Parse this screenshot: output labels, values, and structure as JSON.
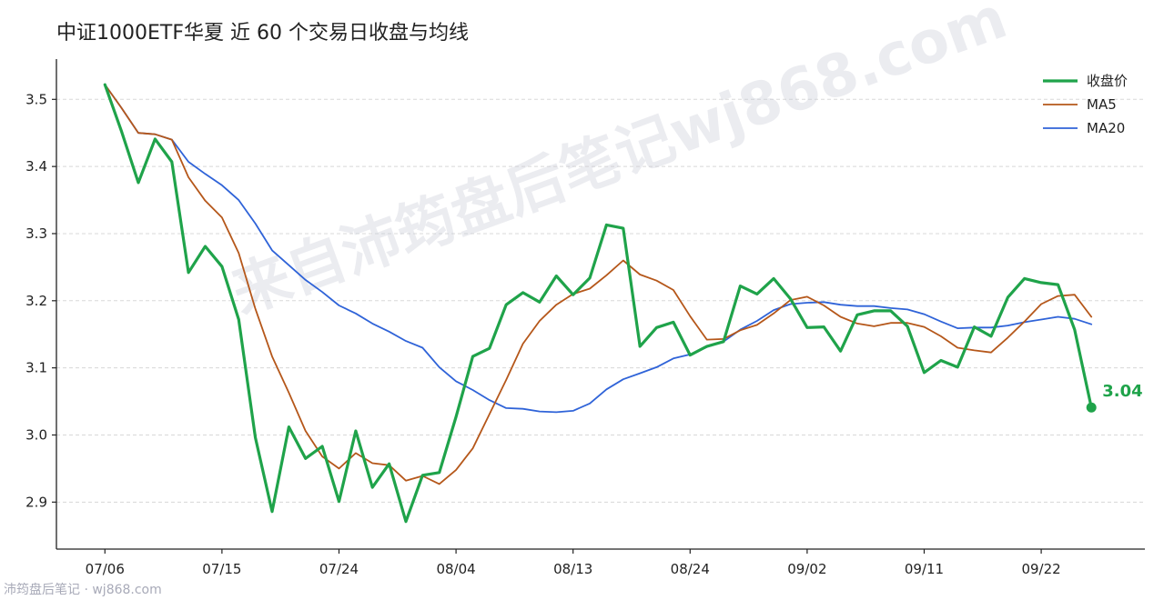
{
  "title": "中证1000ETF华夏 近 60 个交易日收盘与均线",
  "watermark": "来自沛筠盘后笔记wj868.com",
  "footer": "沛筠盘后笔记 · wj868.com",
  "chart_data": {
    "type": "line",
    "title": "中证1000ETF华夏 近 60 个交易日收盘与均线",
    "x_tick_labels": [
      "07/06",
      "07/15",
      "07/24",
      "08/04",
      "08/13",
      "08/24",
      "09/02",
      "09/11",
      "09/22"
    ],
    "x_tick_indices": [
      0,
      7,
      14,
      21,
      28,
      35,
      42,
      49,
      56
    ],
    "y_ticks": [
      2.9,
      3.0,
      3.1,
      3.2,
      3.3,
      3.4,
      3.5
    ],
    "y_tick_labels": [
      "2.9",
      "3.0",
      "3.1",
      "3.2",
      "3.3",
      "3.4",
      "3.5"
    ],
    "ylim": [
      2.83,
      3.56
    ],
    "xlim": [
      -2.9,
      62.2
    ],
    "grid": "horizontal dashed",
    "legend_position": "top-right",
    "end_label": "3.04",
    "series": [
      {
        "name": "收盘价",
        "color": "#1fa34a",
        "width": 3.2,
        "values": [
          3.522,
          3.452,
          3.376,
          3.441,
          3.407,
          3.242,
          3.281,
          3.251,
          3.172,
          2.996,
          2.886,
          3.012,
          2.965,
          2.983,
          2.901,
          3.006,
          2.922,
          2.957,
          2.871,
          2.94,
          2.944,
          3.027,
          3.117,
          3.129,
          3.194,
          3.212,
          3.198,
          3.237,
          3.209,
          3.234,
          3.313,
          3.308,
          3.132,
          3.16,
          3.168,
          3.119,
          3.132,
          3.139,
          3.222,
          3.21,
          3.233,
          3.203,
          3.16,
          3.161,
          3.125,
          3.179,
          3.185,
          3.185,
          3.162,
          3.093,
          3.111,
          3.101,
          3.161,
          3.147,
          3.205,
          3.233,
          3.227,
          3.224,
          3.157,
          3.041
        ]
      },
      {
        "name": "MA5",
        "color": "#b5571a",
        "width": 1.8,
        "values": [
          3.522,
          3.487,
          3.45,
          3.448,
          3.44,
          3.384,
          3.349,
          3.324,
          3.271,
          3.188,
          3.117,
          3.063,
          3.006,
          2.968,
          2.95,
          2.973,
          2.958,
          2.955,
          2.932,
          2.939,
          2.927,
          2.948,
          2.98,
          3.031,
          3.082,
          3.136,
          3.17,
          3.194,
          3.21,
          3.218,
          3.238,
          3.26,
          3.239,
          3.23,
          3.216,
          3.177,
          3.142,
          3.143,
          3.156,
          3.164,
          3.181,
          3.201,
          3.206,
          3.193,
          3.176,
          3.166,
          3.162,
          3.167,
          3.167,
          3.161,
          3.147,
          3.13,
          3.126,
          3.123,
          3.145,
          3.169,
          3.195,
          3.207,
          3.209,
          3.176
        ]
      },
      {
        "name": "MA20",
        "color": "#2f63d8",
        "width": 1.8,
        "values": [
          3.522,
          3.487,
          3.45,
          3.448,
          3.44,
          3.407,
          3.389,
          3.372,
          3.35,
          3.315,
          3.275,
          3.253,
          3.231,
          3.213,
          3.193,
          3.181,
          3.166,
          3.154,
          3.14,
          3.13,
          3.101,
          3.08,
          3.067,
          3.052,
          3.04,
          3.039,
          3.035,
          3.034,
          3.036,
          3.047,
          3.068,
          3.083,
          3.092,
          3.101,
          3.114,
          3.12,
          3.131,
          3.139,
          3.157,
          3.17,
          3.186,
          3.195,
          3.197,
          3.198,
          3.194,
          3.192,
          3.192,
          3.189,
          3.187,
          3.18,
          3.169,
          3.159,
          3.16,
          3.16,
          3.163,
          3.168,
          3.172,
          3.176,
          3.173,
          3.165
        ]
      }
    ]
  }
}
